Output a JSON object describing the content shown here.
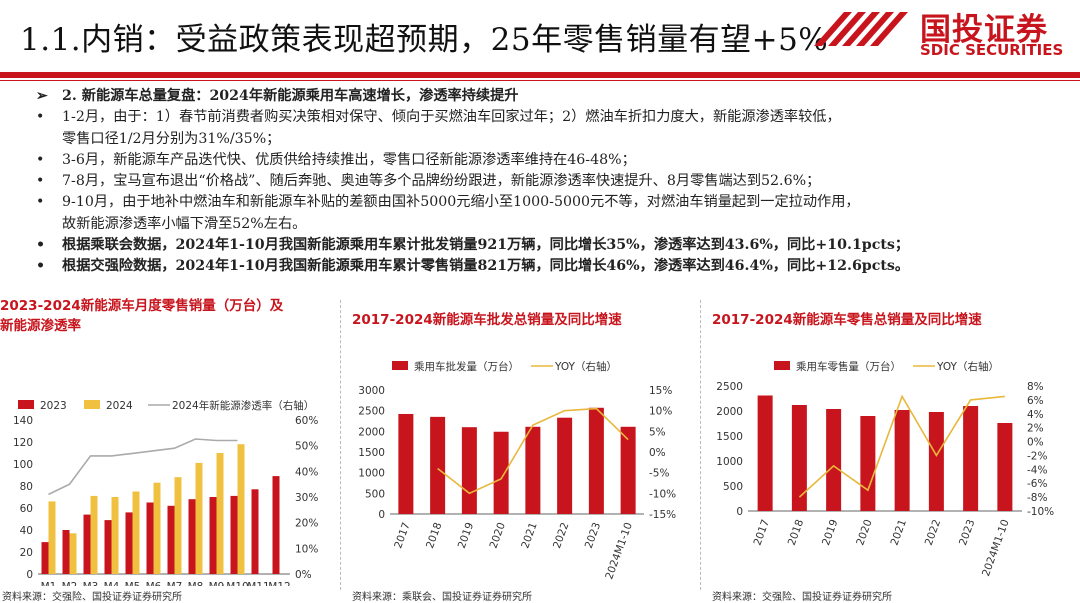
{
  "header": {
    "title": "1.1.内销：受益政策表现超预期，25年零售销量有望+5%",
    "logo_cn": "国投证券",
    "logo_en": "SDIC SECURITIES"
  },
  "bullets": [
    {
      "marker": "➢",
      "bold": true,
      "text": "2. 新能源车总量复盘：2024年新能源乘用车高速增长，渗透率持续提升"
    },
    {
      "marker": "•",
      "bold": false,
      "text": "1-2月，由于：1）春节前消费者购买决策相对保守、倾向于买燃油车回家过年；2）燃油车折扣力度大，新能源渗透率较低，"
    },
    {
      "marker": "",
      "bold": false,
      "text": "零售口径1/2月分别为31%/35%；"
    },
    {
      "marker": "•",
      "bold": false,
      "text": "3-6月，新能源车产品迭代快、优质供给持续推出，零售口径新能源渗透率维持在46-48%；"
    },
    {
      "marker": "•",
      "bold": false,
      "text": "7-8月，宝马宣布退出“价格战”、随后奔驰、奥迪等多个品牌纷纷跟进，新能源渗透率快速提升、8月零售端达到52.6%；"
    },
    {
      "marker": "•",
      "bold": false,
      "text": "9-10月，由于地补中燃油车和新能源车补贴的差额由国补5000元缩小至1000-5000元不等，对燃油车销量起到一定拉动作用，"
    },
    {
      "marker": "",
      "bold": false,
      "text": "故新能源渗透率小幅下滑至52%左右。"
    },
    {
      "marker": "•",
      "bold": true,
      "text": "根据乘联会数据，2024年1-10月我国新能源乘用车累计批发销量921万辆，同比增长35%，渗透率达到43.6%，同比+10.1pcts；"
    },
    {
      "marker": "•",
      "bold": true,
      "text": "根据交强险数据，2024年1-10月我国新能源乘用车累计零售销量821万辆，同比增长46%，渗透率达到46.4%，同比+12.6pcts。"
    }
  ],
  "charts": {
    "c1": {
      "title_line1": "2023-2024新能源车月度零售销量（万台）及",
      "title_line2": "新能源渗透率",
      "source": "资料来源：交强险、国投证券证券研究所"
    },
    "c2": {
      "title": "2017-2024新能源车批发总销量及同比增速",
      "source": "资料来源：乘联会、国投证券证券研究所"
    },
    "c3": {
      "title": "2017-2024新能源车零售总销量及同比增速",
      "source": "资料来源：交强险、国投证券证券研究所"
    }
  },
  "chart_data": [
    {
      "type": "bar",
      "categories": [
        "M1",
        "M2",
        "M3",
        "M4",
        "M5",
        "M6",
        "M7",
        "M8",
        "M9",
        "M10",
        "M11",
        "M12"
      ],
      "series": [
        {
          "name": "2023",
          "type": "bar",
          "color": "#c8151d",
          "values": [
            29,
            40,
            54,
            49,
            56,
            65,
            62,
            68,
            70,
            71,
            77,
            89
          ]
        },
        {
          "name": "2024",
          "type": "bar",
          "color": "#f0c040",
          "values": [
            66,
            37,
            71,
            70,
            75,
            83,
            88,
            101,
            110,
            118,
            null,
            null
          ]
        },
        {
          "name": "2024年新能源渗透率（右轴）",
          "type": "line",
          "axis": "right",
          "color": "#aaaaaa",
          "values": [
            31,
            35,
            46,
            46,
            47,
            48,
            49,
            52.6,
            52,
            52,
            null,
            null
          ]
        }
      ],
      "ylim": [
        0,
        140
      ],
      "yticks": [
        0,
        20,
        40,
        60,
        80,
        100,
        120,
        140
      ],
      "y2lim": [
        0,
        60
      ],
      "y2ticks": [
        "0%",
        "10%",
        "20%",
        "30%",
        "40%",
        "50%",
        "60%"
      ],
      "legend": "top"
    },
    {
      "type": "bar",
      "categories": [
        "2017",
        "2018",
        "2019",
        "2020",
        "2021",
        "2022",
        "2023",
        "2024M1-10"
      ],
      "series": [
        {
          "name": "乘用车批发量（万台）",
          "type": "bar",
          "color": "#c8151d",
          "values": [
            2420,
            2350,
            2100,
            1990,
            2110,
            2330,
            2570,
            2110
          ]
        },
        {
          "name": "YOY（右轴）",
          "type": "line",
          "axis": "right",
          "color": "#e8b83c",
          "values": [
            null,
            -4,
            -10,
            -6.5,
            6.5,
            10,
            10.5,
            3
          ]
        }
      ],
      "ylim": [
        0,
        3000
      ],
      "yticks": [
        0,
        500,
        1000,
        1500,
        2000,
        2500,
        3000
      ],
      "y2lim": [
        -15,
        15
      ],
      "y2ticks": [
        "-15%",
        "-10%",
        "-5%",
        "0%",
        "5%",
        "10%",
        "15%"
      ],
      "legend": "top"
    },
    {
      "type": "bar",
      "categories": [
        "2017",
        "2018",
        "2019",
        "2020",
        "2021",
        "2022",
        "2023",
        "2024M1-10"
      ],
      "series": [
        {
          "name": "乘用车零售量（万台）",
          "type": "bar",
          "color": "#c8151d",
          "values": [
            2310,
            2120,
            2040,
            1900,
            2020,
            1980,
            2100,
            1760
          ]
        },
        {
          "name": "YOY（右轴）",
          "type": "line",
          "axis": "right",
          "color": "#e8b83c",
          "values": [
            null,
            -8,
            -3.5,
            -7,
            6.5,
            -2,
            6,
            6.5
          ]
        }
      ],
      "ylim": [
        0,
        2500
      ],
      "yticks": [
        0,
        500,
        1000,
        1500,
        2000,
        2500
      ],
      "y2lim": [
        -10,
        8
      ],
      "y2ticks": [
        "-10%",
        "-8%",
        "-6%",
        "-4%",
        "-2%",
        "0%",
        "2%",
        "4%",
        "6%",
        "8%"
      ],
      "legend": "top"
    }
  ]
}
